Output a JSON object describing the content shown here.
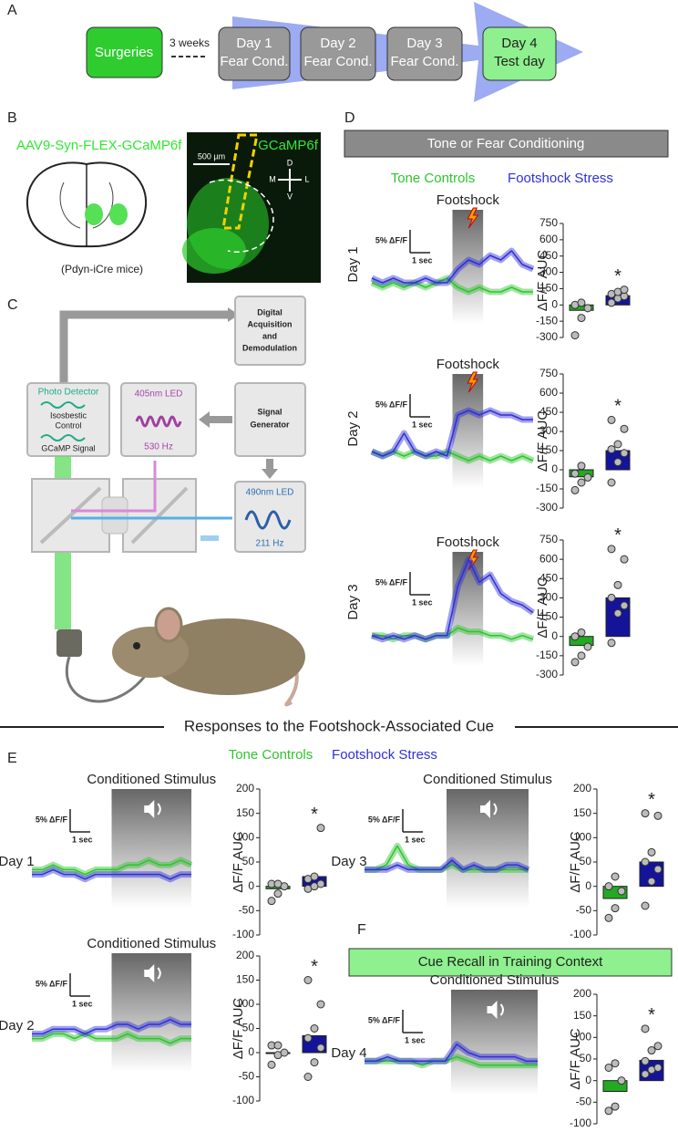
{
  "figure": {
    "letters": [
      "A",
      "B",
      "C",
      "D",
      "E",
      "F"
    ],
    "panel_a": {
      "steps": [
        [
          "Surgeries"
        ],
        [
          "Day 1",
          "Fear Cond."
        ],
        [
          "Day 2",
          "Fear Cond."
        ],
        [
          "Day 3",
          "Fear Cond."
        ],
        [
          "Day 4",
          "Test day"
        ]
      ],
      "interval": "3 weeks"
    },
    "panel_b": {
      "virus": "AAV9-Syn-FLEX-GCaMP6f",
      "mice": "(Pdyn-iCre mice)",
      "indicator": "GCaMP6f",
      "scale": "500 µm",
      "compass": [
        "D",
        "V",
        "M",
        "L"
      ]
    },
    "panel_c": {
      "acquisition": [
        "Digital",
        "Acquisition",
        "and",
        "Demodulation"
      ],
      "detector": [
        "Photo Detector",
        "Isosbestic",
        "Control",
        "GCaMP Signal"
      ],
      "led405": [
        "405nm LED",
        "530 Hz"
      ],
      "generator": [
        "Signal",
        "Generator"
      ],
      "led490": [
        "490nm LED",
        "211 Hz"
      ]
    },
    "panel_d_header": "Tone or Fear Conditioning",
    "section_title": "Responses to the Footshock-Associated Cue",
    "panel_f_header": "Cue Recall in Training Context"
  },
  "chart_data": [
    {
      "type": "line",
      "label": "Day 1",
      "event": "Footshock",
      "scale_y": "5% ΔF/F",
      "scale_x": "1 sec",
      "ylim": [
        -8,
        17
      ],
      "series": [
        {
          "name": "Tone Controls",
          "color": "#2fc42f",
          "values": [
            1,
            0,
            1,
            0,
            1,
            0,
            1,
            2,
            0,
            -1,
            0,
            -1,
            -1,
            0,
            -1,
            -1
          ]
        },
        {
          "name": "Footshock Stress",
          "color": "#3030d8",
          "values": [
            2,
            1,
            2,
            1,
            1,
            2,
            1,
            1,
            4,
            6,
            5,
            7,
            6,
            8,
            5,
            4
          ]
        }
      ]
    },
    {
      "type": "bar",
      "ylabel": "ΔF/F AUC",
      "annotation": "*",
      "categories": [
        null,
        null
      ],
      "values": [
        -50,
        85
      ],
      "colors": [
        "#22aa22",
        "#14149a"
      ],
      "points": [
        [
          -280,
          -120,
          -30,
          0,
          20
        ],
        [
          20,
          60,
          80,
          100,
          120,
          140
        ]
      ],
      "ylim": [
        -300,
        750
      ],
      "yticks": [
        750,
        600,
        450,
        300,
        150,
        0,
        -150,
        -300
      ]
    },
    {
      "type": "line",
      "label": "Day 2",
      "event": "Footshock",
      "scale_y": "5% ΔF/F",
      "scale_x": "1 sec",
      "ylim": [
        -8,
        17
      ],
      "series": [
        {
          "name": "Tone Controls",
          "color": "#2fc42f",
          "values": [
            0,
            -1,
            0,
            -1,
            0,
            -1,
            -1,
            0,
            -1,
            -2,
            -1,
            -2,
            -1,
            -2,
            -1,
            -2
          ]
        },
        {
          "name": "Footshock Stress",
          "color": "#3030d8",
          "values": [
            0,
            -1,
            0,
            4,
            0,
            -1,
            0,
            -1,
            8,
            9,
            8,
            9,
            8,
            8,
            7,
            7
          ]
        }
      ]
    },
    {
      "type": "bar",
      "ylabel": "ΔF/F AUC",
      "annotation": "*",
      "categories": [
        null,
        null
      ],
      "values": [
        -55,
        150
      ],
      "colors": [
        "#22aa22",
        "#14149a"
      ],
      "points": [
        [
          -160,
          -100,
          -60,
          -30,
          30
        ],
        [
          -100,
          60,
          130,
          160,
          200,
          320,
          390
        ]
      ],
      "ylim": [
        -300,
        750
      ],
      "yticks": [
        750,
        600,
        450,
        300,
        150,
        0,
        -150,
        -300
      ]
    },
    {
      "type": "line",
      "label": "Day 3",
      "event": "Footshock",
      "scale_y": "5% ΔF/F",
      "scale_x": "1 sec",
      "ylim": [
        -8,
        22
      ],
      "series": [
        {
          "name": "Tone Controls",
          "color": "#2fc42f",
          "values": [
            0,
            0,
            -1,
            0,
            0,
            -1,
            0,
            0,
            2,
            1,
            1,
            0,
            0,
            -1,
            0,
            -1
          ]
        },
        {
          "name": "Footshock Stress",
          "color": "#3030d8",
          "values": [
            0,
            -1,
            0,
            -1,
            0,
            -1,
            0,
            0,
            13,
            20,
            14,
            16,
            11,
            9,
            8,
            6
          ]
        }
      ]
    },
    {
      "type": "bar",
      "ylabel": "ΔF/F AUC",
      "annotation": "*",
      "categories": [
        null,
        null
      ],
      "values": [
        -70,
        300
      ],
      "colors": [
        "#22aa22",
        "#14149a"
      ],
      "points": [
        [
          -200,
          -150,
          -80,
          0,
          30
        ],
        [
          -50,
          180,
          240,
          300,
          400,
          600,
          680
        ]
      ],
      "ylim": [
        -300,
        750
      ],
      "yticks": [
        750,
        600,
        450,
        300,
        150,
        0,
        -150,
        -300
      ]
    },
    {
      "type": "line",
      "label": "Day 1",
      "event": "Conditioned Stimulus",
      "scale_y": "5% ΔF/F",
      "scale_x": "1 sec",
      "ylim": [
        -8,
        17
      ],
      "series": [
        {
          "name": "Tone Controls",
          "color": "#2fc42f",
          "values": [
            0,
            0,
            1,
            0,
            0,
            -1,
            0,
            0,
            0,
            1,
            1,
            2,
            1,
            1,
            2,
            1
          ]
        },
        {
          "name": "Footshock Stress",
          "color": "#3030d8",
          "values": [
            -1,
            -1,
            0,
            -1,
            -1,
            -2,
            -1,
            -1,
            -1,
            -1,
            -1,
            -1,
            -1,
            -2,
            -1,
            -1
          ]
        }
      ]
    },
    {
      "type": "bar",
      "ylabel": "ΔF/F AUC",
      "annotation": "*",
      "categories": [
        null,
        null
      ],
      "values": [
        -5,
        20
      ],
      "colors": [
        "#22aa22",
        "#14149a"
      ],
      "points": [
        [
          -30,
          -15,
          0,
          5,
          5
        ],
        [
          -5,
          0,
          5,
          15,
          20,
          120
        ]
      ],
      "ylim": [
        -100,
        200
      ],
      "yticks": [
        200,
        150,
        100,
        50,
        0,
        -50,
        -100
      ]
    },
    {
      "type": "line",
      "label": "Day 3",
      "event": "Conditioned Stimulus",
      "scale_y": "5% ΔF/F",
      "scale_x": "1 sec",
      "ylim": [
        -8,
        17
      ],
      "series": [
        {
          "name": "Tone Controls",
          "color": "#2fc42f",
          "values": [
            0,
            0,
            1,
            5,
            1,
            0,
            0,
            0,
            1,
            0,
            0,
            0,
            0,
            0,
            0,
            0
          ]
        },
        {
          "name": "Footshock Stress",
          "color": "#3030d8",
          "values": [
            0,
            0,
            0,
            1,
            0,
            0,
            0,
            0,
            2,
            0,
            1,
            0,
            0,
            1,
            1,
            0
          ]
        }
      ]
    },
    {
      "type": "bar",
      "ylabel": "ΔF/F AUC",
      "annotation": "*",
      "categories": [
        null,
        null
      ],
      "values": [
        -25,
        50
      ],
      "colors": [
        "#22aa22",
        "#14149a"
      ],
      "points": [
        [
          -65,
          -45,
          -10,
          0,
          20
        ],
        [
          -40,
          10,
          35,
          50,
          70,
          145,
          150
        ]
      ],
      "ylim": [
        -100,
        200
      ],
      "yticks": [
        200,
        150,
        100,
        50,
        0,
        -50,
        -100
      ]
    },
    {
      "type": "line",
      "label": "Day 2",
      "event": "Conditioned Stimulus",
      "scale_y": "5% ΔF/F",
      "scale_x": "1 sec",
      "ylim": [
        -8,
        17
      ],
      "series": [
        {
          "name": "Tone Controls",
          "color": "#2fc42f",
          "values": [
            -1,
            -1,
            0,
            0,
            -1,
            0,
            -1,
            -1,
            -1,
            0,
            -1,
            -1,
            -1,
            -2,
            -1,
            -1
          ]
        },
        {
          "name": "Footshock Stress",
          "color": "#3030d8",
          "values": [
            0,
            0,
            1,
            1,
            1,
            0,
            1,
            1,
            2,
            2,
            1,
            2,
            2,
            3,
            2,
            2
          ]
        }
      ]
    },
    {
      "type": "bar",
      "ylabel": "ΔF/F AUC",
      "annotation": "*",
      "categories": [
        null,
        null
      ],
      "values": [
        0,
        35
      ],
      "colors": [
        "#22aa22",
        "#14149a"
      ],
      "points": [
        [
          -25,
          -5,
          0,
          15,
          15
        ],
        [
          -50,
          -20,
          10,
          30,
          50,
          100,
          150
        ]
      ],
      "ylim": [
        -100,
        200
      ],
      "yticks": [
        200,
        150,
        100,
        50,
        0,
        -50,
        -100
      ]
    },
    {
      "type": "line",
      "label": "Day 4",
      "event": "Conditioned Stimulus",
      "scale_y": "5% ΔF/F",
      "scale_x": "1 sec",
      "ylim": [
        -8,
        17
      ],
      "series": [
        {
          "name": "Tone Controls",
          "color": "#2fc42f",
          "values": [
            0,
            0,
            0,
            0,
            0,
            -1,
            0,
            0,
            1,
            0,
            -1,
            -1,
            -1,
            -1,
            -1,
            -1
          ]
        },
        {
          "name": "Footshock Stress",
          "color": "#3030d8",
          "values": [
            0,
            0,
            1,
            0,
            0,
            0,
            0,
            0,
            4,
            2,
            1,
            1,
            1,
            1,
            0,
            0
          ]
        }
      ]
    },
    {
      "type": "bar",
      "ylabel": "ΔF/F AUC",
      "annotation": "*",
      "categories": [
        null,
        null
      ],
      "values": [
        -25,
        47
      ],
      "colors": [
        "#22aa22",
        "#14149a"
      ],
      "points": [
        [
          -70,
          -60,
          0,
          30,
          40
        ],
        [
          15,
          25,
          30,
          45,
          70,
          80,
          120
        ]
      ],
      "ylim": [
        -100,
        200
      ],
      "yticks": [
        200,
        150,
        100,
        50,
        0,
        -50,
        -100
      ]
    }
  ]
}
